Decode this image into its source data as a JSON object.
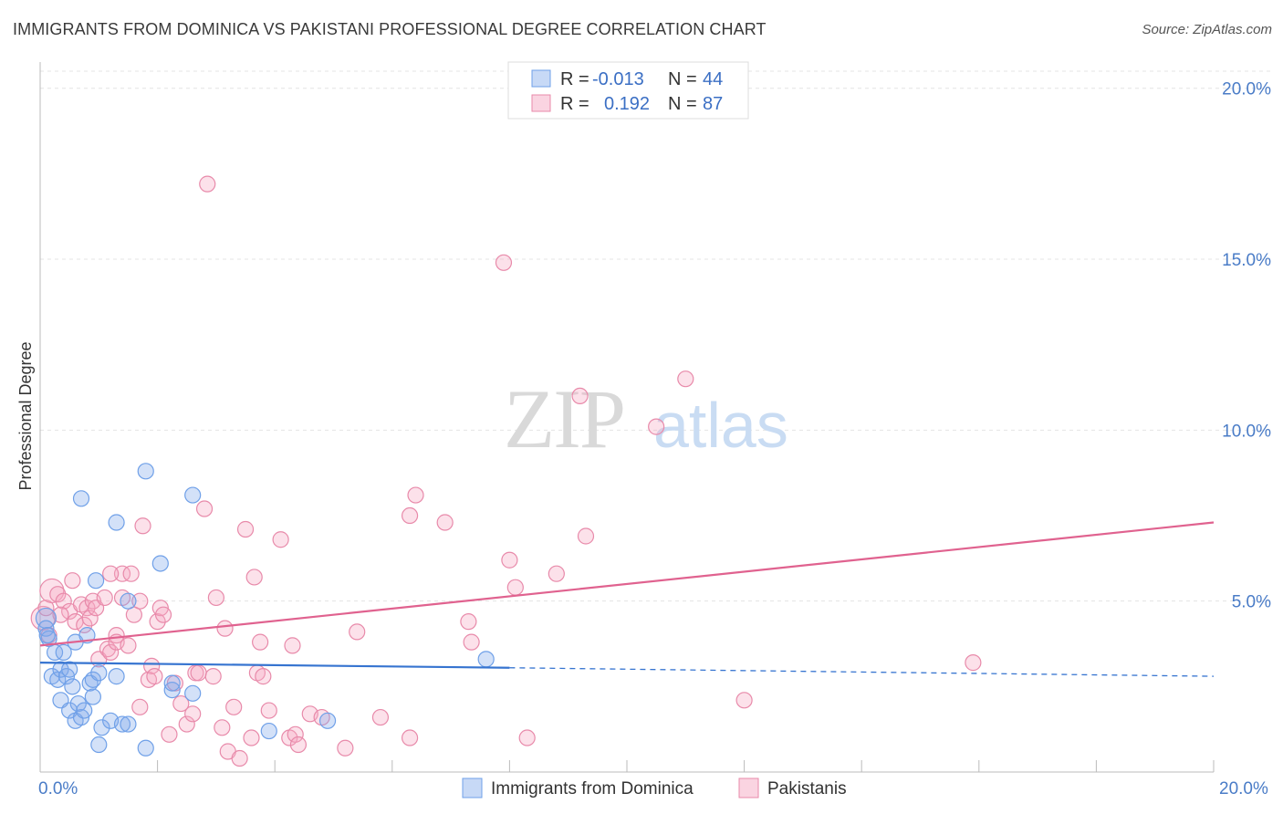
{
  "title": "IMMIGRANTS FROM DOMINICA VS PAKISTANI PROFESSIONAL DEGREE CORRELATION CHART",
  "source": "Source: ZipAtlas.com",
  "colors": {
    "blue": "#6fa0e8",
    "blue_fill": "rgba(130,170,235,0.35)",
    "blue_line": "#3674d0",
    "pink": "#e88aaa",
    "pink_fill": "rgba(245,170,195,0.35)",
    "pink_line": "#e0628f"
  },
  "legend": {
    "r_label": "R =",
    "n_label": "N =",
    "series1": {
      "r": "-0.013",
      "n": "44"
    },
    "series2": {
      "r": "0.192",
      "n": "87"
    }
  },
  "chart_data": {
    "type": "scatter",
    "title": "IMMIGRANTS FROM DOMINICA VS PAKISTANI PROFESSIONAL DEGREE CORRELATION CHART",
    "xlabel": "",
    "ylabel": "Professional Degree",
    "xlim": [
      0,
      20
    ],
    "ylim": [
      0,
      20.5
    ],
    "x_tick_labels": [
      "0.0%",
      "20.0%"
    ],
    "y_tick_labels": [
      "5.0%",
      "10.0%",
      "15.0%",
      "20.0%"
    ],
    "y_ticks": [
      5,
      10,
      15,
      20
    ],
    "watermark": {
      "zip": "ZIP",
      "atlas": "atlas"
    },
    "series": [
      {
        "name": "Immigrants from Dominica",
        "trend": {
          "x0": 0,
          "y0": 3.2,
          "x1": 8,
          "y1": 3.05,
          "dash_x1": 20,
          "dash_y1": 2.8
        },
        "points": [
          [
            0.1,
            4.5
          ],
          [
            0.1,
            4.2
          ],
          [
            0.15,
            3.9
          ],
          [
            0.2,
            2.8
          ],
          [
            0.25,
            3.5
          ],
          [
            0.3,
            2.7
          ],
          [
            0.35,
            3.0
          ],
          [
            0.35,
            2.1
          ],
          [
            0.4,
            3.5
          ],
          [
            0.45,
            2.8
          ],
          [
            0.5,
            1.8
          ],
          [
            0.55,
            2.5
          ],
          [
            0.6,
            1.5
          ],
          [
            0.6,
            3.8
          ],
          [
            0.65,
            2.0
          ],
          [
            0.7,
            8.0
          ],
          [
            0.7,
            1.6
          ],
          [
            0.75,
            1.8
          ],
          [
            0.8,
            4.0
          ],
          [
            0.85,
            2.6
          ],
          [
            0.9,
            2.2
          ],
          [
            0.9,
            2.7
          ],
          [
            0.95,
            5.6
          ],
          [
            1.0,
            2.9
          ],
          [
            1.0,
            0.8
          ],
          [
            1.05,
            1.3
          ],
          [
            1.2,
            1.5
          ],
          [
            1.3,
            2.8
          ],
          [
            1.3,
            7.3
          ],
          [
            1.4,
            1.4
          ],
          [
            1.5,
            1.4
          ],
          [
            1.5,
            5.0
          ],
          [
            1.8,
            0.7
          ],
          [
            1.8,
            8.8
          ],
          [
            2.05,
            6.1
          ],
          [
            2.25,
            2.4
          ],
          [
            2.25,
            2.6
          ],
          [
            2.6,
            2.3
          ],
          [
            2.6,
            8.1
          ],
          [
            3.9,
            1.2
          ],
          [
            4.9,
            1.5
          ],
          [
            7.6,
            3.3
          ],
          [
            0.12,
            4.0
          ],
          [
            0.5,
            3.0
          ]
        ]
      },
      {
        "name": "Pakistanis",
        "trend": {
          "x0": 0,
          "y0": 3.7,
          "x1": 20,
          "y1": 7.3
        },
        "points": [
          [
            0.05,
            4.5
          ],
          [
            0.1,
            4.8
          ],
          [
            0.15,
            4.0
          ],
          [
            0.2,
            5.3
          ],
          [
            0.3,
            5.2
          ],
          [
            0.4,
            5.0
          ],
          [
            0.5,
            4.7
          ],
          [
            0.55,
            5.6
          ],
          [
            0.6,
            4.4
          ],
          [
            0.7,
            4.9
          ],
          [
            0.75,
            4.3
          ],
          [
            0.8,
            4.8
          ],
          [
            0.85,
            4.5
          ],
          [
            0.9,
            5.0
          ],
          [
            0.95,
            4.8
          ],
          [
            1.0,
            3.3
          ],
          [
            1.1,
            5.1
          ],
          [
            1.15,
            3.6
          ],
          [
            1.2,
            3.5
          ],
          [
            1.3,
            4.0
          ],
          [
            1.3,
            3.8
          ],
          [
            1.4,
            5.1
          ],
          [
            1.4,
            5.8
          ],
          [
            1.5,
            3.7
          ],
          [
            1.55,
            5.8
          ],
          [
            1.6,
            4.6
          ],
          [
            1.7,
            1.9
          ],
          [
            1.7,
            5.0
          ],
          [
            1.75,
            7.2
          ],
          [
            1.85,
            2.7
          ],
          [
            1.9,
            3.1
          ],
          [
            1.95,
            2.8
          ],
          [
            2.0,
            4.4
          ],
          [
            2.05,
            4.8
          ],
          [
            2.1,
            4.6
          ],
          [
            2.2,
            1.1
          ],
          [
            2.3,
            2.6
          ],
          [
            2.4,
            2.0
          ],
          [
            2.5,
            1.4
          ],
          [
            2.6,
            1.7
          ],
          [
            2.65,
            2.9
          ],
          [
            2.7,
            2.9
          ],
          [
            2.8,
            7.7
          ],
          [
            2.85,
            17.2
          ],
          [
            2.95,
            2.8
          ],
          [
            3.0,
            5.1
          ],
          [
            3.1,
            1.3
          ],
          [
            3.15,
            4.2
          ],
          [
            3.2,
            0.6
          ],
          [
            3.3,
            1.9
          ],
          [
            3.4,
            0.4
          ],
          [
            3.5,
            7.1
          ],
          [
            3.6,
            1.0
          ],
          [
            3.65,
            5.7
          ],
          [
            3.7,
            2.9
          ],
          [
            3.75,
            3.8
          ],
          [
            3.8,
            2.8
          ],
          [
            3.9,
            1.8
          ],
          [
            4.1,
            6.8
          ],
          [
            4.25,
            1.0
          ],
          [
            4.3,
            3.7
          ],
          [
            4.35,
            1.1
          ],
          [
            4.4,
            0.8
          ],
          [
            4.6,
            1.7
          ],
          [
            4.8,
            1.6
          ],
          [
            5.2,
            0.7
          ],
          [
            5.4,
            4.1
          ],
          [
            5.8,
            1.6
          ],
          [
            6.3,
            1.0
          ],
          [
            6.3,
            7.5
          ],
          [
            6.4,
            8.1
          ],
          [
            6.9,
            7.3
          ],
          [
            7.3,
            4.4
          ],
          [
            7.35,
            3.8
          ],
          [
            7.9,
            14.9
          ],
          [
            8.0,
            6.2
          ],
          [
            8.1,
            5.4
          ],
          [
            8.3,
            1.0
          ],
          [
            8.8,
            5.8
          ],
          [
            9.2,
            11.0
          ],
          [
            9.3,
            6.9
          ],
          [
            10.5,
            10.1
          ],
          [
            11.0,
            11.5
          ],
          [
            12.0,
            2.1
          ],
          [
            15.9,
            3.2
          ],
          [
            1.2,
            5.8
          ],
          [
            0.35,
            4.6
          ]
        ]
      }
    ]
  },
  "bottom_legend": {
    "series1": "Immigrants from Dominica",
    "series2": "Pakistanis"
  }
}
